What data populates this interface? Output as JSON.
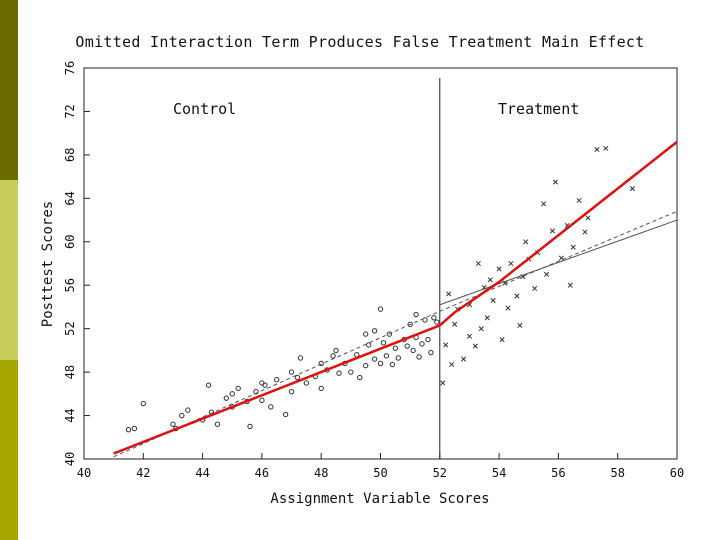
{
  "slide": {
    "sidebar_colors": [
      "#6b6b00",
      "#c8cc5a",
      "#a6a600"
    ]
  },
  "chart_data": {
    "type": "scatter",
    "title": "Omitted Interaction Term Produces False Treatment Main Effect",
    "xlabel": "Assignment Variable Scores",
    "ylabel": "Posttest Scores",
    "xlim": [
      40,
      60
    ],
    "ylim": [
      40,
      76
    ],
    "x_ticks": [
      "40",
      "42",
      "44",
      "46",
      "48",
      "50",
      "52",
      "54",
      "56",
      "58",
      "60"
    ],
    "y_ticks": [
      "40",
      "44",
      "48",
      "52",
      "56",
      "60",
      "64",
      "68",
      "72",
      "76"
    ],
    "cutoff_x": 52,
    "annotations": [
      "Control",
      "Treatment"
    ],
    "grid": false,
    "series": [
      {
        "marker": "o",
        "color": "#333333",
        "points": [
          [
            41.5,
            42.7
          ],
          [
            41.7,
            42.8
          ],
          [
            42.0,
            45.1
          ],
          [
            43.0,
            43.2
          ],
          [
            43.1,
            42.8
          ],
          [
            43.3,
            44.0
          ],
          [
            43.5,
            44.5
          ],
          [
            44.0,
            43.6
          ],
          [
            44.2,
            46.8
          ],
          [
            44.3,
            44.3
          ],
          [
            44.5,
            43.2
          ],
          [
            44.8,
            45.6
          ],
          [
            45.0,
            44.8
          ],
          [
            45.2,
            46.5
          ],
          [
            45.5,
            45.3
          ],
          [
            45.6,
            43.0
          ],
          [
            45.8,
            46.2
          ],
          [
            46.0,
            45.4
          ],
          [
            46.1,
            46.8
          ],
          [
            46.3,
            44.8
          ],
          [
            46.5,
            47.3
          ],
          [
            46.8,
            44.1
          ],
          [
            47.0,
            46.2
          ],
          [
            47.2,
            47.5
          ],
          [
            47.3,
            49.3
          ],
          [
            47.5,
            47.0
          ],
          [
            47.8,
            47.6
          ],
          [
            48.0,
            48.8
          ],
          [
            48.0,
            46.5
          ],
          [
            48.2,
            48.2
          ],
          [
            48.4,
            49.5
          ],
          [
            48.6,
            47.9
          ],
          [
            48.8,
            48.8
          ],
          [
            49.0,
            48.0
          ],
          [
            49.2,
            49.6
          ],
          [
            49.3,
            47.5
          ],
          [
            49.5,
            48.6
          ],
          [
            49.6,
            50.5
          ],
          [
            49.8,
            49.2
          ],
          [
            50.0,
            48.8
          ],
          [
            50.1,
            50.7
          ],
          [
            50.2,
            49.5
          ],
          [
            50.3,
            51.5
          ],
          [
            50.4,
            48.7
          ],
          [
            50.5,
            50.2
          ],
          [
            50.6,
            49.3
          ],
          [
            50.8,
            51.0
          ],
          [
            50.9,
            50.4
          ],
          [
            51.0,
            52.4
          ],
          [
            51.1,
            50.0
          ],
          [
            51.2,
            53.3
          ],
          [
            51.3,
            49.4
          ],
          [
            51.4,
            50.6
          ],
          [
            51.5,
            52.8
          ],
          [
            51.6,
            51.0
          ],
          [
            51.7,
            49.8
          ],
          [
            51.8,
            53.0
          ],
          [
            51.9,
            52.6
          ],
          [
            50.0,
            53.8
          ],
          [
            49.5,
            51.5
          ],
          [
            48.5,
            50.0
          ],
          [
            47.0,
            48.0
          ],
          [
            46.0,
            47.0
          ],
          [
            45.0,
            46.0
          ],
          [
            49.8,
            51.8
          ],
          [
            51.2,
            51.2
          ]
        ]
      },
      {
        "marker": "x",
        "color": "#333333",
        "points": [
          [
            52.1,
            47.0
          ],
          [
            52.2,
            50.5
          ],
          [
            52.3,
            55.2
          ],
          [
            52.4,
            48.7
          ],
          [
            52.5,
            52.4
          ],
          [
            52.6,
            53.8
          ],
          [
            52.8,
            49.2
          ],
          [
            53.0,
            51.3
          ],
          [
            53.0,
            54.2
          ],
          [
            53.2,
            50.4
          ],
          [
            53.3,
            58.0
          ],
          [
            53.4,
            52.0
          ],
          [
            53.5,
            55.8
          ],
          [
            53.6,
            53.0
          ],
          [
            53.8,
            54.6
          ],
          [
            54.0,
            57.5
          ],
          [
            54.1,
            51.0
          ],
          [
            54.2,
            56.2
          ],
          [
            54.3,
            53.9
          ],
          [
            54.4,
            58.0
          ],
          [
            54.6,
            55.0
          ],
          [
            54.7,
            52.3
          ],
          [
            54.8,
            56.8
          ],
          [
            55.0,
            58.4
          ],
          [
            55.2,
            55.7
          ],
          [
            55.3,
            59.0
          ],
          [
            55.5,
            63.5
          ],
          [
            55.6,
            57.0
          ],
          [
            55.8,
            61.0
          ],
          [
            55.9,
            65.5
          ],
          [
            56.1,
            58.5
          ],
          [
            56.3,
            61.5
          ],
          [
            56.4,
            56.0
          ],
          [
            56.5,
            59.5
          ],
          [
            56.7,
            63.8
          ],
          [
            57.0,
            62.2
          ],
          [
            57.3,
            68.5
          ],
          [
            57.6,
            68.6
          ],
          [
            58.5,
            64.9
          ],
          [
            53.7,
            56.5
          ],
          [
            54.9,
            60.0
          ],
          [
            56.9,
            60.9
          ]
        ]
      }
    ],
    "lines": [
      {
        "name": "",
        "color": "#e01010",
        "style": "solid",
        "points": [
          [
            41.0,
            40.5
          ],
          [
            52.0,
            52.3
          ],
          [
            52.5,
            53.5
          ],
          [
            54.0,
            56.3
          ],
          [
            60.0,
            69.2
          ]
        ]
      },
      {
        "name": "",
        "color": "#555555",
        "style": "dashed",
        "points": [
          [
            41.0,
            40.2
          ],
          [
            52.0,
            53.6
          ],
          [
            60.0,
            62.8
          ]
        ]
      },
      {
        "name": "",
        "color": "#555555",
        "style": "solid",
        "points": [
          [
            52.0,
            54.2
          ],
          [
            60.0,
            62.0
          ]
        ]
      }
    ]
  }
}
